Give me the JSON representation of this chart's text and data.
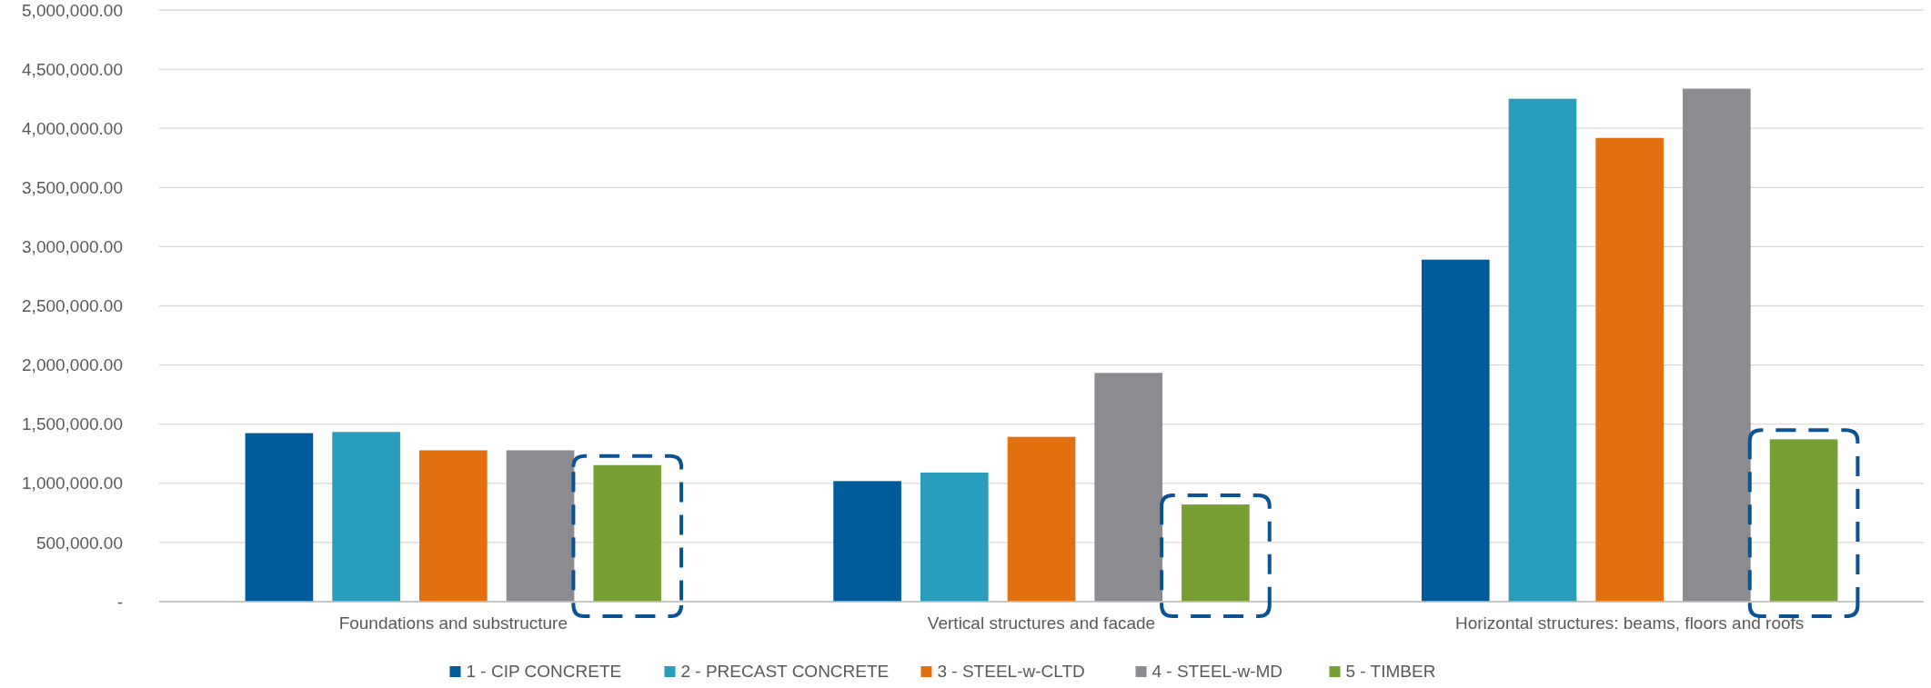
{
  "chart_data": {
    "type": "bar",
    "categories": [
      "Foundations and substructure",
      "Vertical structures and facade",
      "Horizontal structures: beams, floors and roofs"
    ],
    "series": [
      {
        "name": "1 - CIP CONCRETE",
        "color": "#005b9a",
        "values": [
          1424000,
          1019000,
          2890000
        ]
      },
      {
        "name": "2 - PRECAST CONCRETE",
        "color": "#2a9dbd",
        "values": [
          1434000,
          1091000,
          4250000
        ]
      },
      {
        "name": "3 - STEEL-w-CLTD",
        "color": "#e2700e",
        "values": [
          1279000,
          1393000,
          3919000
        ]
      },
      {
        "name": "4 - STEEL-w-MD",
        "color": "#8c8b90",
        "values": [
          1279000,
          1933000,
          4335000
        ]
      },
      {
        "name": "5 - TIMBER",
        "color": "#789f33",
        "values": [
          1154000,
          821000,
          1372000
        ]
      }
    ],
    "ylim": [
      0,
      5000000
    ],
    "yticks": [
      {
        "value": 0,
        "label": "-"
      },
      {
        "value": 500000,
        "label": "500,000.00"
      },
      {
        "value": 1000000,
        "label": "1,000,000.00"
      },
      {
        "value": 1500000,
        "label": "1,500,000.00"
      },
      {
        "value": 2000000,
        "label": "2,000,000.00"
      },
      {
        "value": 2500000,
        "label": "2,500,000.00"
      },
      {
        "value": 3000000,
        "label": "3,000,000.00"
      },
      {
        "value": 3500000,
        "label": "3,500,000.00"
      },
      {
        "value": 4000000,
        "label": "4,000,000.00"
      },
      {
        "value": 4500000,
        "label": "4,500,000.00"
      },
      {
        "value": 5000000,
        "label": "5,000,000.00"
      }
    ],
    "grid": "y",
    "legend": "bottom"
  }
}
